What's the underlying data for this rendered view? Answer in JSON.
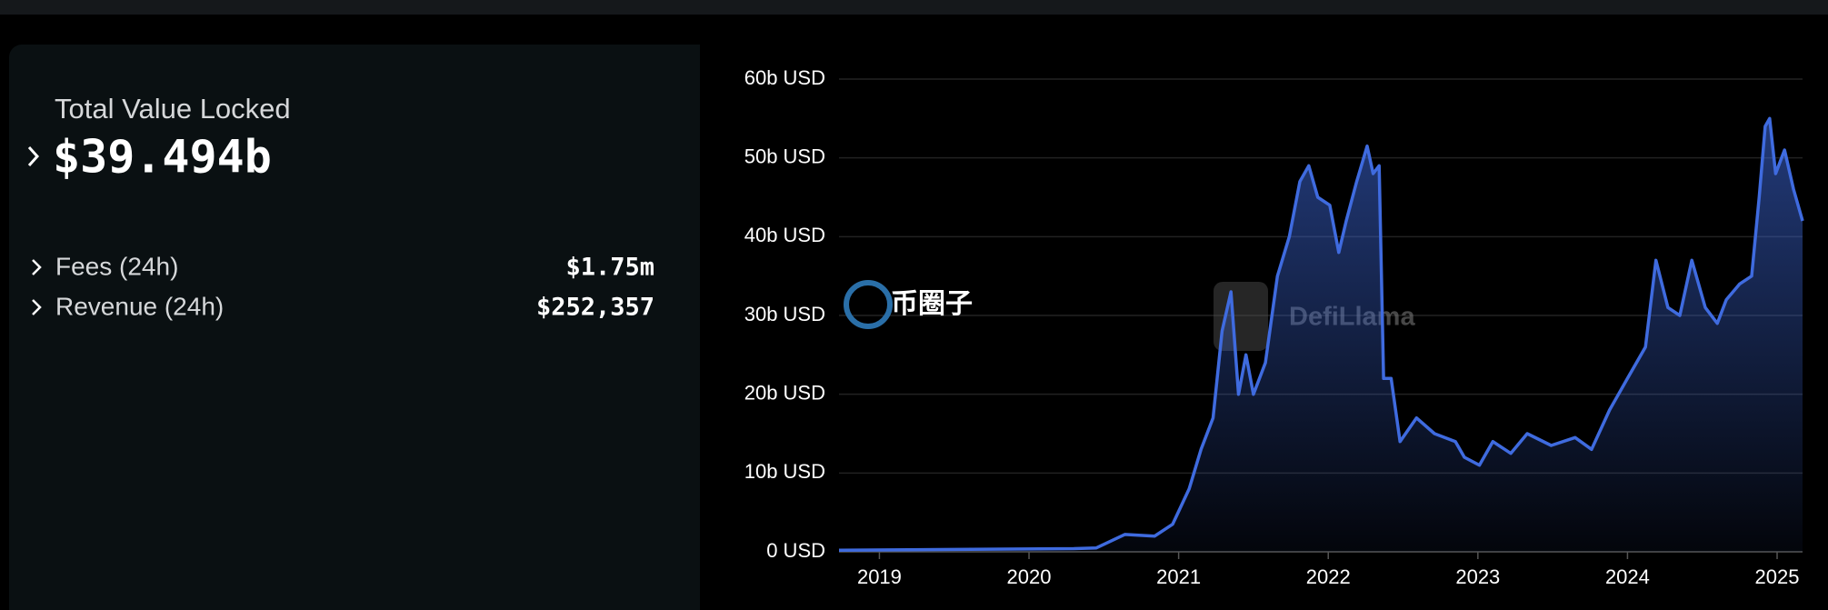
{
  "panel": {
    "title": "Total Value Locked",
    "value": "$39.494b",
    "rows": [
      {
        "label": "Fees (24h)",
        "value": "$1.75m"
      },
      {
        "label": "Revenue (24h)",
        "value": "$252,357"
      }
    ]
  },
  "chart_data": {
    "type": "area",
    "watermarks": [
      "币圈子",
      "DefiLlama"
    ],
    "x": [
      2018.73,
      2019.5,
      2020.3,
      2020.45,
      2020.64,
      2020.84,
      2020.96,
      2021.07,
      2021.15,
      2021.23,
      2021.29,
      2021.35,
      2021.4,
      2021.45,
      2021.5,
      2021.58,
      2021.66,
      2021.74,
      2021.81,
      2021.87,
      2021.93,
      2022.01,
      2022.07,
      2022.12,
      2022.19,
      2022.26,
      2022.3,
      2022.34,
      2022.37,
      2022.42,
      2022.48,
      2022.59,
      2022.71,
      2022.85,
      2022.91,
      2023.01,
      2023.1,
      2023.22,
      2023.33,
      2023.49,
      2023.65,
      2023.76,
      2023.88,
      2024.0,
      2024.12,
      2024.19,
      2024.27,
      2024.35,
      2024.43,
      2024.52,
      2024.6,
      2024.66,
      2024.75,
      2024.83,
      2024.88,
      2024.92,
      2024.95,
      2024.99,
      2025.05,
      2025.11,
      2025.17
    ],
    "series": [
      {
        "name": "TVL",
        "color": "#3f6bdf",
        "values": [
          0.2,
          0.3,
          0.4,
          0.5,
          2.2,
          2.0,
          3.5,
          8,
          13,
          17,
          28,
          33,
          20,
          25,
          20,
          24,
          35,
          40,
          47,
          49,
          45,
          44,
          38,
          42,
          47,
          51.5,
          48,
          49,
          22,
          22,
          14,
          17,
          15,
          14,
          12,
          11,
          14,
          12.5,
          15,
          13.5,
          14.5,
          13,
          18,
          22,
          26,
          37,
          31,
          30,
          37,
          31,
          29,
          32,
          34,
          35,
          45,
          54,
          55,
          48,
          51,
          46,
          42
        ]
      }
    ],
    "xlim": [
      2018.73,
      2025.17
    ],
    "xticks": [
      2019,
      2020,
      2021,
      2022,
      2023,
      2024,
      2025
    ],
    "ylim": [
      0,
      60
    ],
    "yticks": [
      {
        "value": 0,
        "label": "0 USD"
      },
      {
        "value": 10,
        "label": "10b USD"
      },
      {
        "value": 20,
        "label": "20b USD"
      },
      {
        "value": 30,
        "label": "30b USD"
      },
      {
        "value": 40,
        "label": "40b USD"
      },
      {
        "value": 50,
        "label": "50b USD"
      },
      {
        "value": 60,
        "label": "60b USD"
      }
    ],
    "grid": true
  }
}
